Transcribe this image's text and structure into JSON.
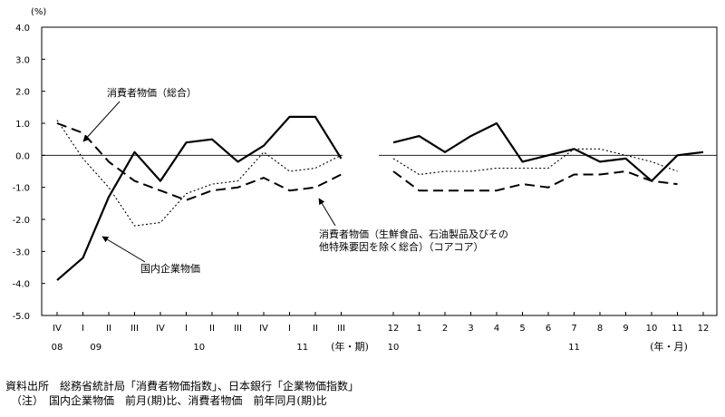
{
  "chart_data": {
    "type": "line",
    "unit_label": "(%)",
    "ylim": [
      -5.0,
      4.0
    ],
    "yticks": [
      "4.0",
      "3.0",
      "2.0",
      "1.0",
      "0.0",
      "-1.0",
      "-2.0",
      "-3.0",
      "-4.0",
      "-5.0"
    ],
    "grid": false,
    "panels": [
      {
        "x": [
          "IV",
          "I",
          "II",
          "III",
          "IV",
          "I",
          "II",
          "III",
          "IV",
          "I",
          "II",
          "III"
        ],
        "year_labels": [
          {
            "label": "08",
            "index": 0
          },
          {
            "label": "09",
            "index": 1.5
          },
          {
            "label": "10",
            "index": 5.5
          },
          {
            "label": "11",
            "index": 9.5
          }
        ],
        "axis_unit": "(年・期)",
        "series": [
          {
            "key": "kokunai",
            "values": [
              -3.9,
              -3.2,
              -1.3,
              0.1,
              -0.8,
              0.4,
              0.5,
              -0.2,
              0.3,
              1.2,
              1.2,
              -0.1
            ]
          },
          {
            "key": "core",
            "values": [
              1.0,
              0.7,
              -0.2,
              -0.8,
              -1.1,
              -1.4,
              -1.1,
              -1.0,
              -0.7,
              -1.1,
              -1.0,
              -0.6
            ]
          },
          {
            "key": "sogo",
            "values": [
              1.1,
              -0.1,
              -1.0,
              -2.2,
              -2.1,
              -1.2,
              -0.9,
              -0.8,
              0.1,
              -0.5,
              -0.4,
              0.0
            ]
          }
        ]
      },
      {
        "x": [
          "12",
          "1",
          "2",
          "3",
          "4",
          "5",
          "6",
          "7",
          "8",
          "9",
          "10",
          "11",
          "12"
        ],
        "year_labels": [
          {
            "label": "10",
            "index": 0
          },
          {
            "label": "11",
            "index": 7
          }
        ],
        "axis_unit": "(年・月)",
        "series": [
          {
            "key": "kokunai",
            "values": [
              0.4,
              0.6,
              0.1,
              0.6,
              1.0,
              -0.2,
              0.0,
              0.2,
              -0.2,
              -0.1,
              -0.8,
              0.0,
              0.1
            ]
          },
          {
            "key": "core",
            "values": [
              -0.5,
              -1.1,
              -1.1,
              -1.1,
              -1.1,
              -0.9,
              -1.0,
              -0.6,
              -0.6,
              -0.5,
              -0.8,
              -0.9,
              null
            ]
          },
          {
            "key": "sogo",
            "values": [
              -0.1,
              -0.6,
              -0.5,
              -0.5,
              -0.4,
              -0.4,
              -0.4,
              0.2,
              0.2,
              0.0,
              -0.2,
              -0.5,
              null
            ]
          }
        ]
      }
    ],
    "annotations": {
      "sogo": "消費者物価（総合）",
      "core_line1": "消費者物価（生鮮食品、石油製品及びその",
      "core_line2": "他特殊要因を除く総合）（コアコア）",
      "kokunai": "国内企業物価"
    }
  },
  "footnotes": {
    "source": "資料出所　総務省統計局「消費者物価指数」、日本銀行「企業物価指数」",
    "note": "　（注）　国内企業物価　前月(期)比、消費者物価　前年同月(期)比"
  }
}
